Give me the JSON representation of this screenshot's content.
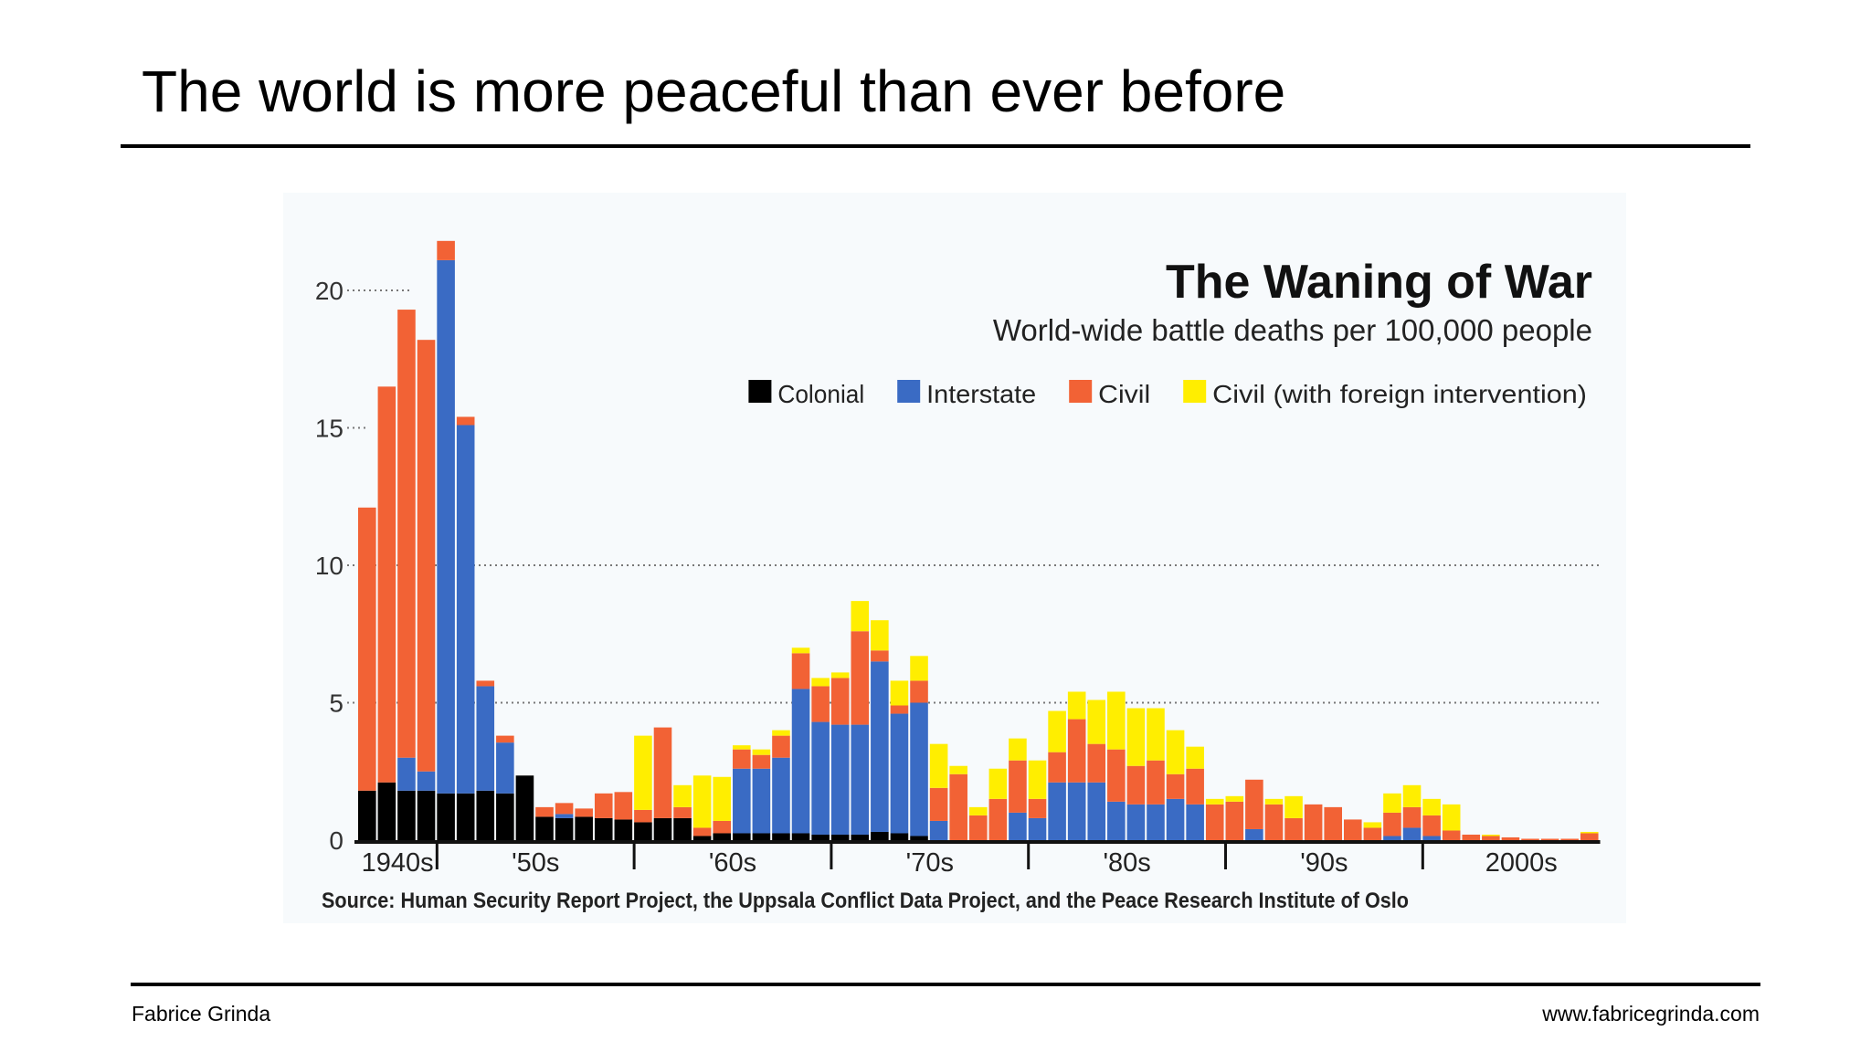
{
  "slide": {
    "title": "The world is more peaceful than ever before",
    "footer_left": "Fabrice Grinda",
    "footer_right": "www.fabricegrinda.com"
  },
  "chart_data": {
    "type": "bar",
    "stacked": true,
    "title": "The Waning of War",
    "subtitle": "World-wide battle deaths per 100,000 people",
    "source": "Source: Human Security Report Project, the Uppsala Conflict Data Project, and the Peace Research Institute of Oslo",
    "legend_position": "top-right",
    "ylim": [
      0,
      22
    ],
    "yticks": [
      0,
      5,
      10,
      15,
      20
    ],
    "grid": "dotted horizontal",
    "x_decade_labels": [
      "1940s",
      "'50s",
      "'60s",
      "'70s",
      "'80s",
      "'90s",
      "2000s"
    ],
    "years": [
      1946,
      1947,
      1948,
      1949,
      1950,
      1951,
      1952,
      1953,
      1954,
      1955,
      1956,
      1957,
      1958,
      1959,
      1960,
      1961,
      1962,
      1963,
      1964,
      1965,
      1966,
      1967,
      1968,
      1969,
      1970,
      1971,
      1972,
      1973,
      1974,
      1975,
      1976,
      1977,
      1978,
      1979,
      1980,
      1981,
      1982,
      1983,
      1984,
      1985,
      1986,
      1987,
      1988,
      1989,
      1990,
      1991,
      1992,
      1993,
      1994,
      1995,
      1996,
      1997,
      1998,
      1999,
      2000,
      2001,
      2002,
      2003,
      2004,
      2005,
      2006,
      2007,
      2008
    ],
    "series": [
      {
        "name": "Colonial",
        "color": "#000000",
        "values": [
          1.8,
          2.1,
          1.8,
          1.8,
          1.7,
          1.7,
          1.8,
          1.7,
          2.35,
          0.85,
          0.8,
          0.85,
          0.8,
          0.75,
          0.65,
          0.8,
          0.8,
          0.15,
          0.25,
          0.25,
          0.25,
          0.25,
          0.25,
          0.2,
          0.2,
          0.2,
          0.3,
          0.25,
          0.15,
          0,
          0,
          0,
          0,
          0,
          0,
          0,
          0,
          0,
          0,
          0,
          0,
          0,
          0,
          0,
          0,
          0,
          0,
          0,
          0,
          0,
          0,
          0,
          0,
          0,
          0,
          0,
          0,
          0,
          0,
          0,
          0,
          0,
          0
        ]
      },
      {
        "name": "Interstate",
        "color": "#3a6bc4",
        "values": [
          0,
          0,
          1.2,
          0.7,
          19.4,
          13.4,
          3.8,
          1.85,
          0,
          0,
          0.15,
          0,
          0,
          0,
          0,
          0,
          0,
          0,
          0,
          2.35,
          2.35,
          2.75,
          5.25,
          4.1,
          4.0,
          4.0,
          6.2,
          4.35,
          4.85,
          0.7,
          0,
          0,
          0,
          1.0,
          0.8,
          2.1,
          2.1,
          2.1,
          1.4,
          1.3,
          1.3,
          1.5,
          1.3,
          0,
          0,
          0.4,
          0,
          0,
          0,
          0,
          0,
          0,
          0.15,
          0.45,
          0.15,
          0,
          0,
          0,
          0,
          0,
          0,
          0,
          0
        ]
      },
      {
        "name": "Civil",
        "color": "#f26235",
        "values": [
          10.3,
          14.4,
          16.3,
          15.7,
          0.7,
          0.3,
          0.2,
          0.25,
          0,
          0.35,
          0.4,
          0.3,
          0.9,
          1.0,
          0.45,
          3.3,
          0.4,
          0.3,
          0.45,
          0.7,
          0.5,
          0.8,
          1.3,
          1.3,
          1.7,
          3.4,
          0.4,
          0.3,
          0.8,
          1.2,
          2.4,
          0.9,
          1.5,
          1.9,
          0.7,
          1.1,
          2.3,
          1.4,
          1.9,
          1.4,
          1.6,
          0.9,
          1.3,
          1.3,
          1.4,
          1.8,
          1.3,
          0.8,
          1.3,
          1.2,
          0.75,
          0.45,
          0.85,
          0.75,
          0.75,
          0.35,
          0.2,
          0.15,
          0.1,
          0.05,
          0.05,
          0.05,
          0.25
        ]
      },
      {
        "name": "Civil (with foreign intervention)",
        "color": "#ffee00",
        "values": [
          0,
          0,
          0,
          0,
          0,
          0,
          0,
          0,
          0,
          0,
          0,
          0,
          0,
          0,
          2.7,
          0,
          0.8,
          1.9,
          1.6,
          0.15,
          0.2,
          0.2,
          0.2,
          0.3,
          0.2,
          1.1,
          1.1,
          0.9,
          0.9,
          1.6,
          0.3,
          0.3,
          1.1,
          0.8,
          1.4,
          1.5,
          1.0,
          1.6,
          2.1,
          2.1,
          1.9,
          1.6,
          0.8,
          0.2,
          0.2,
          0,
          0.2,
          0.8,
          0,
          0,
          0,
          0.2,
          0.7,
          0.8,
          0.6,
          0.95,
          0,
          0.05,
          0,
          0,
          0,
          0,
          0.05
        ]
      }
    ]
  }
}
